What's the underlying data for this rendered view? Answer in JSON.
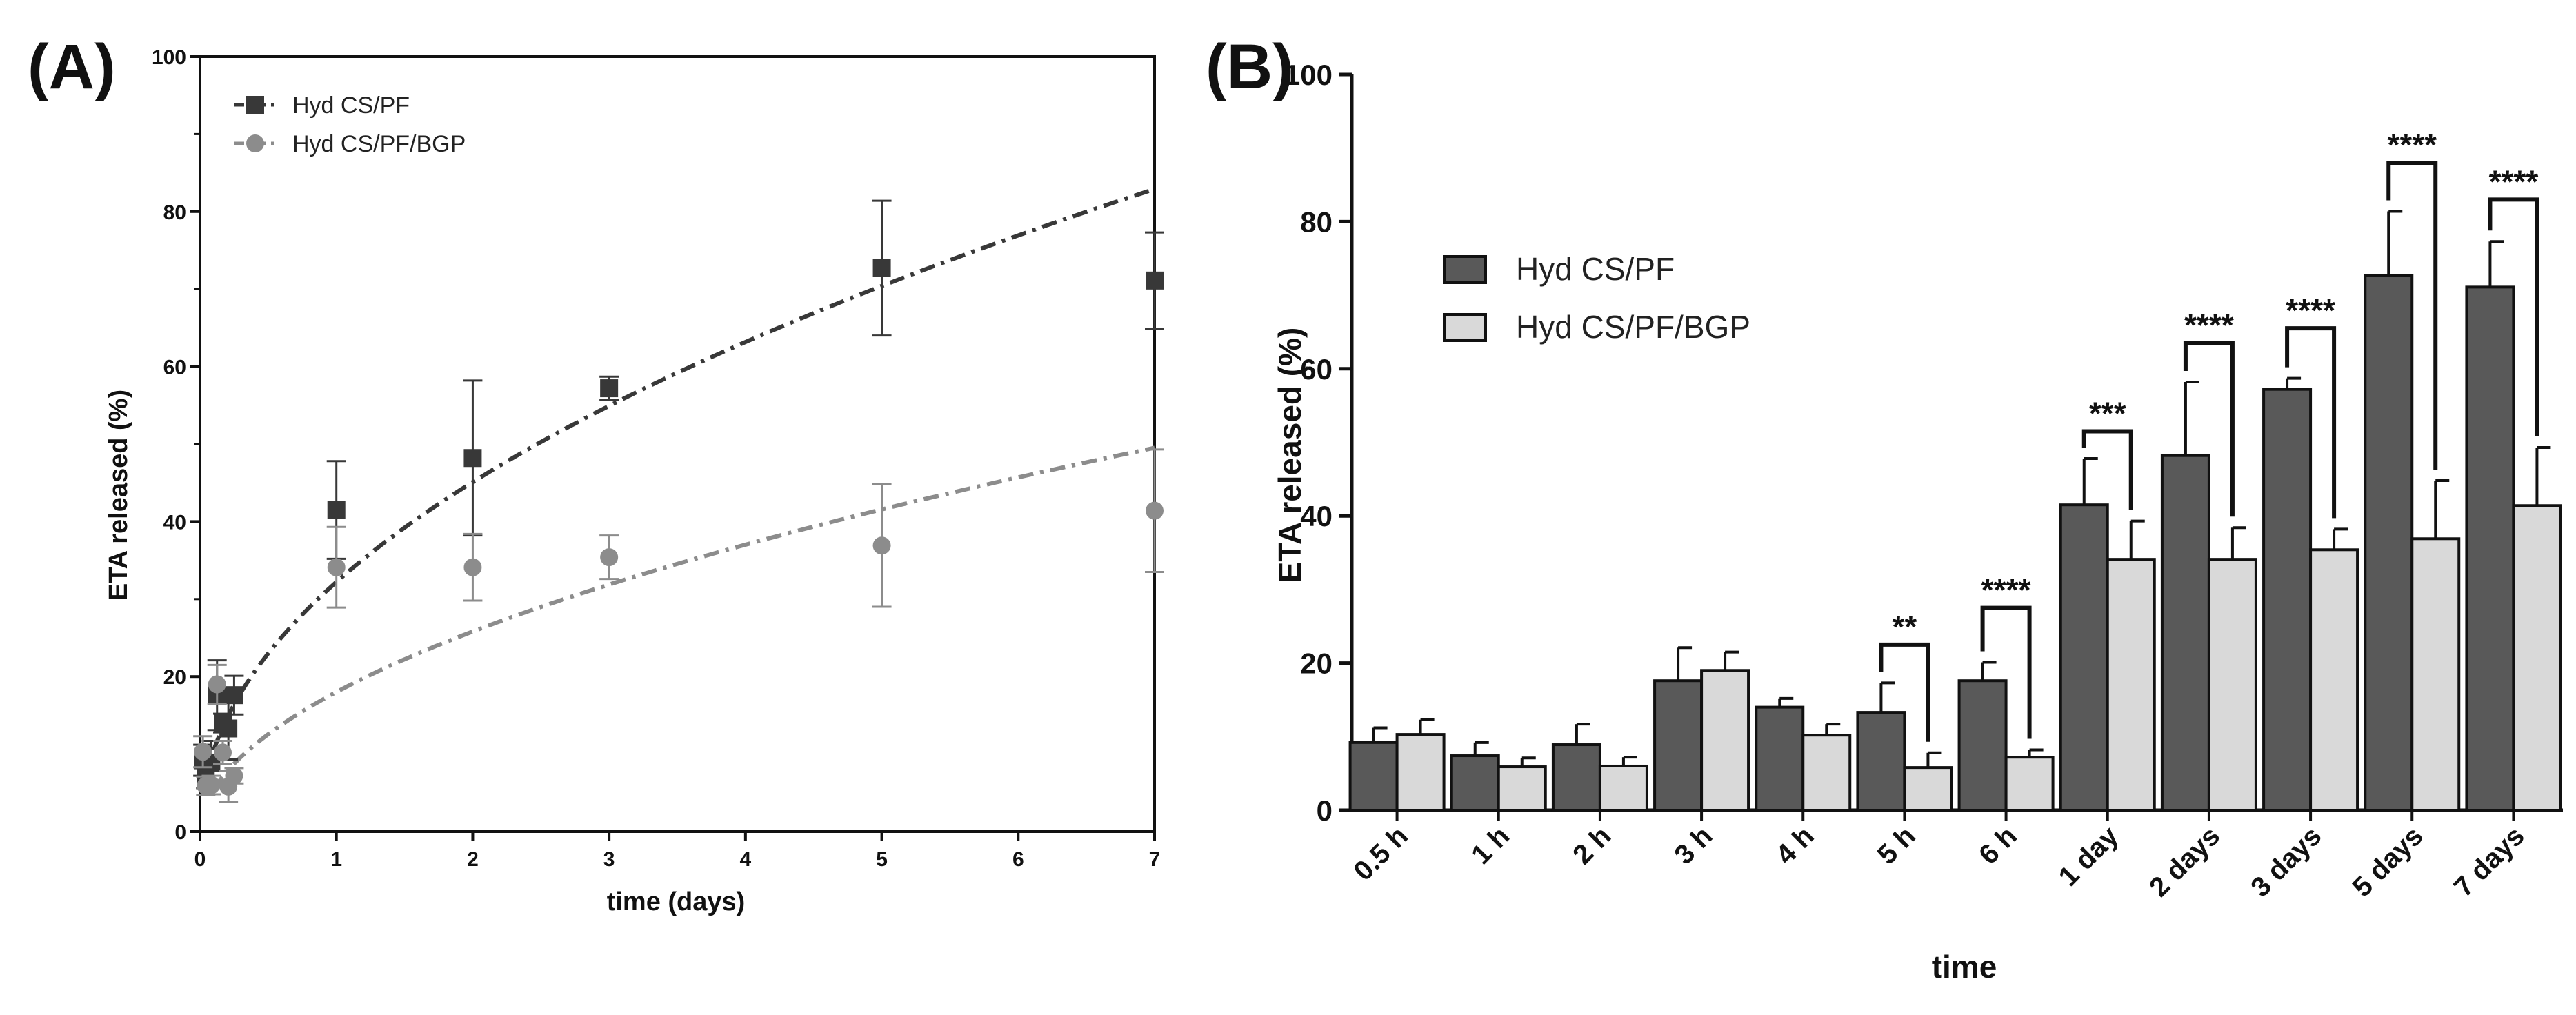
{
  "chart_data": [
    {
      "type": "scatter",
      "panel_label": "(A)",
      "title": "",
      "xlabel": "time (days)",
      "ylabel": "ETA released (%)",
      "xlim": [
        0,
        7
      ],
      "ylim": [
        0,
        100
      ],
      "xticks": [
        0,
        1,
        2,
        3,
        4,
        5,
        6,
        7
      ],
      "yticks": [
        0,
        20,
        40,
        60,
        80,
        100
      ],
      "legend_position": "top-left",
      "series": [
        {
          "name": "Hyd CS/PF",
          "marker": "square",
          "color": "#383838",
          "x": [
            0.021,
            0.042,
            0.083,
            0.125,
            0.167,
            0.208,
            0.25,
            1,
            2,
            3,
            5,
            7
          ],
          "y": [
            9.2,
            7.4,
            8.9,
            17.6,
            14.0,
            13.3,
            17.6,
            41.5,
            48.2,
            57.2,
            72.7,
            71.1
          ],
          "err": [
            2.0,
            1.8,
            2.8,
            4.5,
            1.2,
            4.0,
            2.5,
            6.3,
            10.0,
            1.5,
            8.7,
            6.2
          ],
          "fit_label": "dash-dot fit",
          "fit_k": 32.2,
          "fit_n": 0.486
        },
        {
          "name": "Hyd CS/PF/BGP",
          "marker": "circle",
          "color": "#8c8c8c",
          "x": [
            0.021,
            0.042,
            0.083,
            0.125,
            0.167,
            0.208,
            0.25,
            1,
            2,
            3,
            5,
            7
          ],
          "y": [
            10.3,
            5.9,
            6.0,
            19.0,
            10.2,
            5.8,
            7.2,
            34.1,
            34.1,
            35.4,
            36.9,
            41.4
          ],
          "err": [
            2.0,
            1.2,
            1.2,
            2.5,
            1.5,
            2.0,
            1.0,
            5.2,
            4.3,
            2.8,
            7.9,
            7.9
          ],
          "fit_label": "dash-dot fit",
          "fit_k": 18.0,
          "fit_n": 0.52
        }
      ]
    },
    {
      "type": "bar",
      "panel_label": "(B)",
      "title": "",
      "xlabel": "time",
      "ylabel": "ETA released (%)",
      "ylim": [
        0,
        100
      ],
      "yticks": [
        0,
        20,
        40,
        60,
        80,
        100
      ],
      "legend_position": "top-left",
      "categories": [
        "0.5 h",
        "1 h",
        "2 h",
        "3 h",
        "4 h",
        "5 h",
        "6 h",
        "1 day",
        "2 days",
        "3 days",
        "5 days",
        "7 days"
      ],
      "series": [
        {
          "name": "Hyd CS/PF",
          "color": "#595959",
          "values": [
            9.2,
            7.4,
            8.9,
            17.6,
            14.0,
            13.3,
            17.6,
            41.5,
            48.2,
            57.2,
            72.7,
            71.1
          ],
          "err": [
            2.0,
            1.8,
            2.8,
            4.5,
            1.2,
            4.0,
            2.5,
            6.3,
            10.0,
            1.5,
            8.7,
            6.2
          ]
        },
        {
          "name": "Hyd CS/PF/BGP",
          "color": "#d9d9d9",
          "values": [
            10.3,
            5.9,
            6.0,
            19.0,
            10.2,
            5.8,
            7.2,
            34.1,
            34.1,
            35.4,
            36.9,
            41.4
          ],
          "err": [
            2.0,
            1.2,
            1.2,
            2.5,
            1.5,
            2.0,
            1.0,
            5.2,
            4.3,
            2.8,
            7.9,
            7.9
          ]
        }
      ],
      "significance": [
        {
          "category_index": 5,
          "label": "**",
          "bracket_top": 22.5
        },
        {
          "category_index": 6,
          "label": "****",
          "bracket_top": 27.5
        },
        {
          "category_index": 7,
          "label": "***",
          "bracket_top": 51.5
        },
        {
          "category_index": 8,
          "label": "****",
          "bracket_top": 63.5
        },
        {
          "category_index": 9,
          "label": "****",
          "bracket_top": 65.5
        },
        {
          "category_index": 10,
          "label": "****",
          "bracket_top": 88.0
        },
        {
          "category_index": 11,
          "label": "****",
          "bracket_top": 83.0
        }
      ]
    }
  ]
}
